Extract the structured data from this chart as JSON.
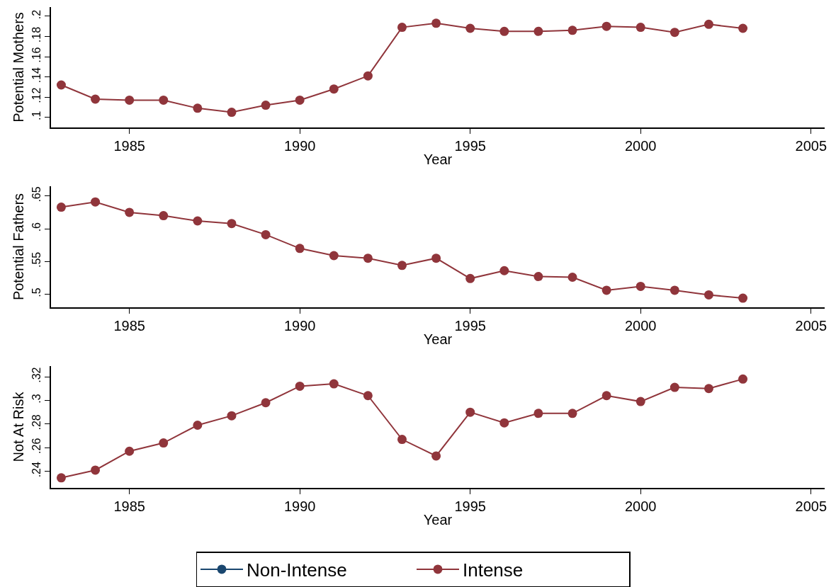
{
  "chart_data": [
    {
      "type": "line",
      "xlabel": "Year",
      "ylabel": "Potential Mothers",
      "marker": "circle",
      "line_style": "solid",
      "x": [
        1983,
        1984,
        1985,
        1986,
        1987,
        1988,
        1989,
        1990,
        1991,
        1992,
        1993,
        1994,
        1995,
        1996,
        1997,
        1998,
        1999,
        2000,
        2001,
        2002,
        2003
      ],
      "xlim": [
        1982.7,
        2005.4
      ],
      "xticks": [
        1985,
        1990,
        1995,
        2000,
        2005
      ],
      "ylim": [
        0.09,
        0.209
      ],
      "yticks": [
        {
          "value": 0.1,
          "label": ".1"
        },
        {
          "value": 0.12,
          "label": ".12"
        },
        {
          "value": 0.14,
          "label": ".14"
        },
        {
          "value": 0.16,
          "label": ".16"
        },
        {
          "value": 0.18,
          "label": ".18"
        },
        {
          "value": 0.2,
          "label": ".2"
        }
      ],
      "series": [
        {
          "color": "#1a476f",
          "values": [
            null,
            null,
            null,
            null,
            null,
            null,
            null,
            null,
            null,
            null,
            null,
            null,
            null,
            null,
            null,
            null,
            null,
            null,
            null,
            null,
            null
          ]
        },
        {
          "color": "#90353b",
          "values": [
            0.132,
            0.118,
            0.117,
            0.117,
            0.109,
            0.105,
            0.112,
            0.117,
            0.128,
            0.141,
            0.189,
            0.193,
            0.188,
            0.185,
            0.185,
            0.186,
            0.19,
            0.189,
            0.184,
            0.192,
            0.188
          ]
        }
      ]
    },
    {
      "type": "line",
      "xlabel": "Year",
      "ylabel": "Potential Fathers",
      "marker": "circle",
      "line_style": "solid",
      "x": [
        1983,
        1984,
        1985,
        1986,
        1987,
        1988,
        1989,
        1990,
        1991,
        1992,
        1993,
        1994,
        1995,
        1996,
        1997,
        1998,
        1999,
        2000,
        2001,
        2002,
        2003
      ],
      "xlim": [
        1982.7,
        2005.4
      ],
      "xticks": [
        1985,
        1990,
        1995,
        2000,
        2005
      ],
      "ylim": [
        0.48,
        0.665
      ],
      "yticks": [
        {
          "value": 0.5,
          "label": ".5"
        },
        {
          "value": 0.55,
          "label": ".55"
        },
        {
          "value": 0.6,
          "label": ".6"
        },
        {
          "value": 0.65,
          "label": ".65"
        }
      ],
      "series": [
        {
          "color": "#1a476f",
          "values": [
            null,
            null,
            null,
            null,
            null,
            null,
            null,
            null,
            null,
            null,
            null,
            null,
            null,
            null,
            null,
            null,
            null,
            null,
            null,
            null,
            null
          ]
        },
        {
          "color": "#90353b",
          "values": [
            0.633,
            0.641,
            0.625,
            0.62,
            0.612,
            0.608,
            0.591,
            0.57,
            0.559,
            0.555,
            0.544,
            0.555,
            0.524,
            0.536,
            0.527,
            0.526,
            0.506,
            0.512,
            0.506,
            0.499,
            0.494
          ]
        }
      ]
    },
    {
      "type": "line",
      "xlabel": "Year",
      "ylabel": "Not At Risk",
      "marker": "circle",
      "line_style": "solid",
      "legend": "bottom",
      "x": [
        1983,
        1984,
        1985,
        1986,
        1987,
        1988,
        1989,
        1990,
        1991,
        1992,
        1993,
        1994,
        1995,
        1996,
        1997,
        1998,
        1999,
        2000,
        2001,
        2002,
        2003
      ],
      "xlim": [
        1982.7,
        2005.4
      ],
      "xticks": [
        1985,
        1990,
        1995,
        2000,
        2005
      ],
      "ylim": [
        0.226,
        0.329
      ],
      "yticks": [
        {
          "value": 0.24,
          "label": ".24"
        },
        {
          "value": 0.26,
          "label": ".26"
        },
        {
          "value": 0.28,
          "label": ".28"
        },
        {
          "value": 0.3,
          "label": ".3"
        },
        {
          "value": 0.32,
          "label": ".32"
        }
      ],
      "series": [
        {
          "name": "Non-Intense",
          "color": "#1a476f",
          "values": [
            null,
            null,
            null,
            null,
            null,
            null,
            null,
            null,
            null,
            null,
            null,
            null,
            null,
            null,
            null,
            null,
            null,
            null,
            null,
            null,
            null
          ]
        },
        {
          "name": "Intense",
          "color": "#90353b",
          "values": [
            0.2345,
            0.241,
            0.257,
            0.264,
            0.279,
            0.287,
            0.298,
            0.312,
            0.314,
            0.304,
            0.267,
            0.253,
            0.29,
            0.281,
            0.289,
            0.289,
            0.304,
            0.299,
            0.311,
            0.31,
            0.318
          ]
        }
      ]
    }
  ]
}
